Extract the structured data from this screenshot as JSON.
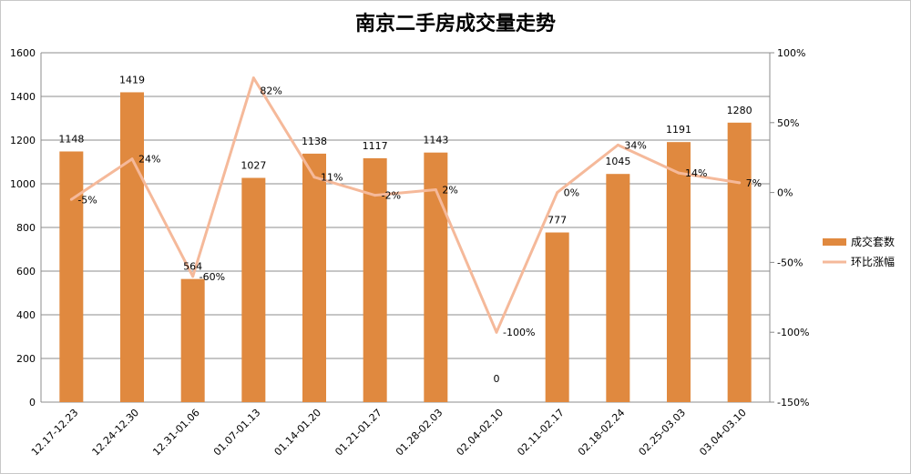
{
  "chart_data": {
    "type": "bar",
    "title": "南京二手房成交量走势",
    "categories": [
      "12.17-12.23",
      "12.24-12.30",
      "12.31-01.06",
      "01.07-01.13",
      "01.14-01.20",
      "01.21-01.27",
      "01.28-02.03",
      "02.04-02.10",
      "02.11-02.17",
      "02.18-02.24",
      "02.25-03.03",
      "03.04-03.10"
    ],
    "y_left": {
      "min": 0,
      "max": 1600,
      "step": 200,
      "ticks": [
        "0",
        "200",
        "400",
        "600",
        "800",
        "1000",
        "1200",
        "1400",
        "1600"
      ]
    },
    "y_right": {
      "min": -150,
      "max": 100,
      "step": 50,
      "ticks": [
        "-150%",
        "-100%",
        "-50%",
        "0%",
        "50%",
        "100%"
      ]
    },
    "series": [
      {
        "name": "成交套数",
        "kind": "bar",
        "color": "#e0893f",
        "axis": "left",
        "values": [
          1148,
          1419,
          564,
          1027,
          1138,
          1117,
          1143,
          0,
          777,
          1045,
          1191,
          1280
        ],
        "labels": [
          "1148",
          "1419",
          "564",
          "1027",
          "1138",
          "1117",
          "1143",
          "0",
          "777",
          "1045",
          "1191",
          "1280"
        ]
      },
      {
        "name": "环比涨幅",
        "kind": "line",
        "color": "#f5b99a",
        "axis": "right",
        "values": [
          -5,
          24,
          -60,
          82,
          11,
          -2,
          2,
          -100,
          0,
          34,
          14,
          7
        ],
        "labels": [
          "-5%",
          "24%",
          "-60%",
          "82%",
          "11%",
          "-2%",
          "2%",
          "-100%",
          "0%",
          "34%",
          "14%",
          "7%"
        ]
      }
    ],
    "legend": {
      "placement": "right",
      "items": [
        "成交套数",
        "环比涨幅"
      ]
    },
    "grid": true
  }
}
